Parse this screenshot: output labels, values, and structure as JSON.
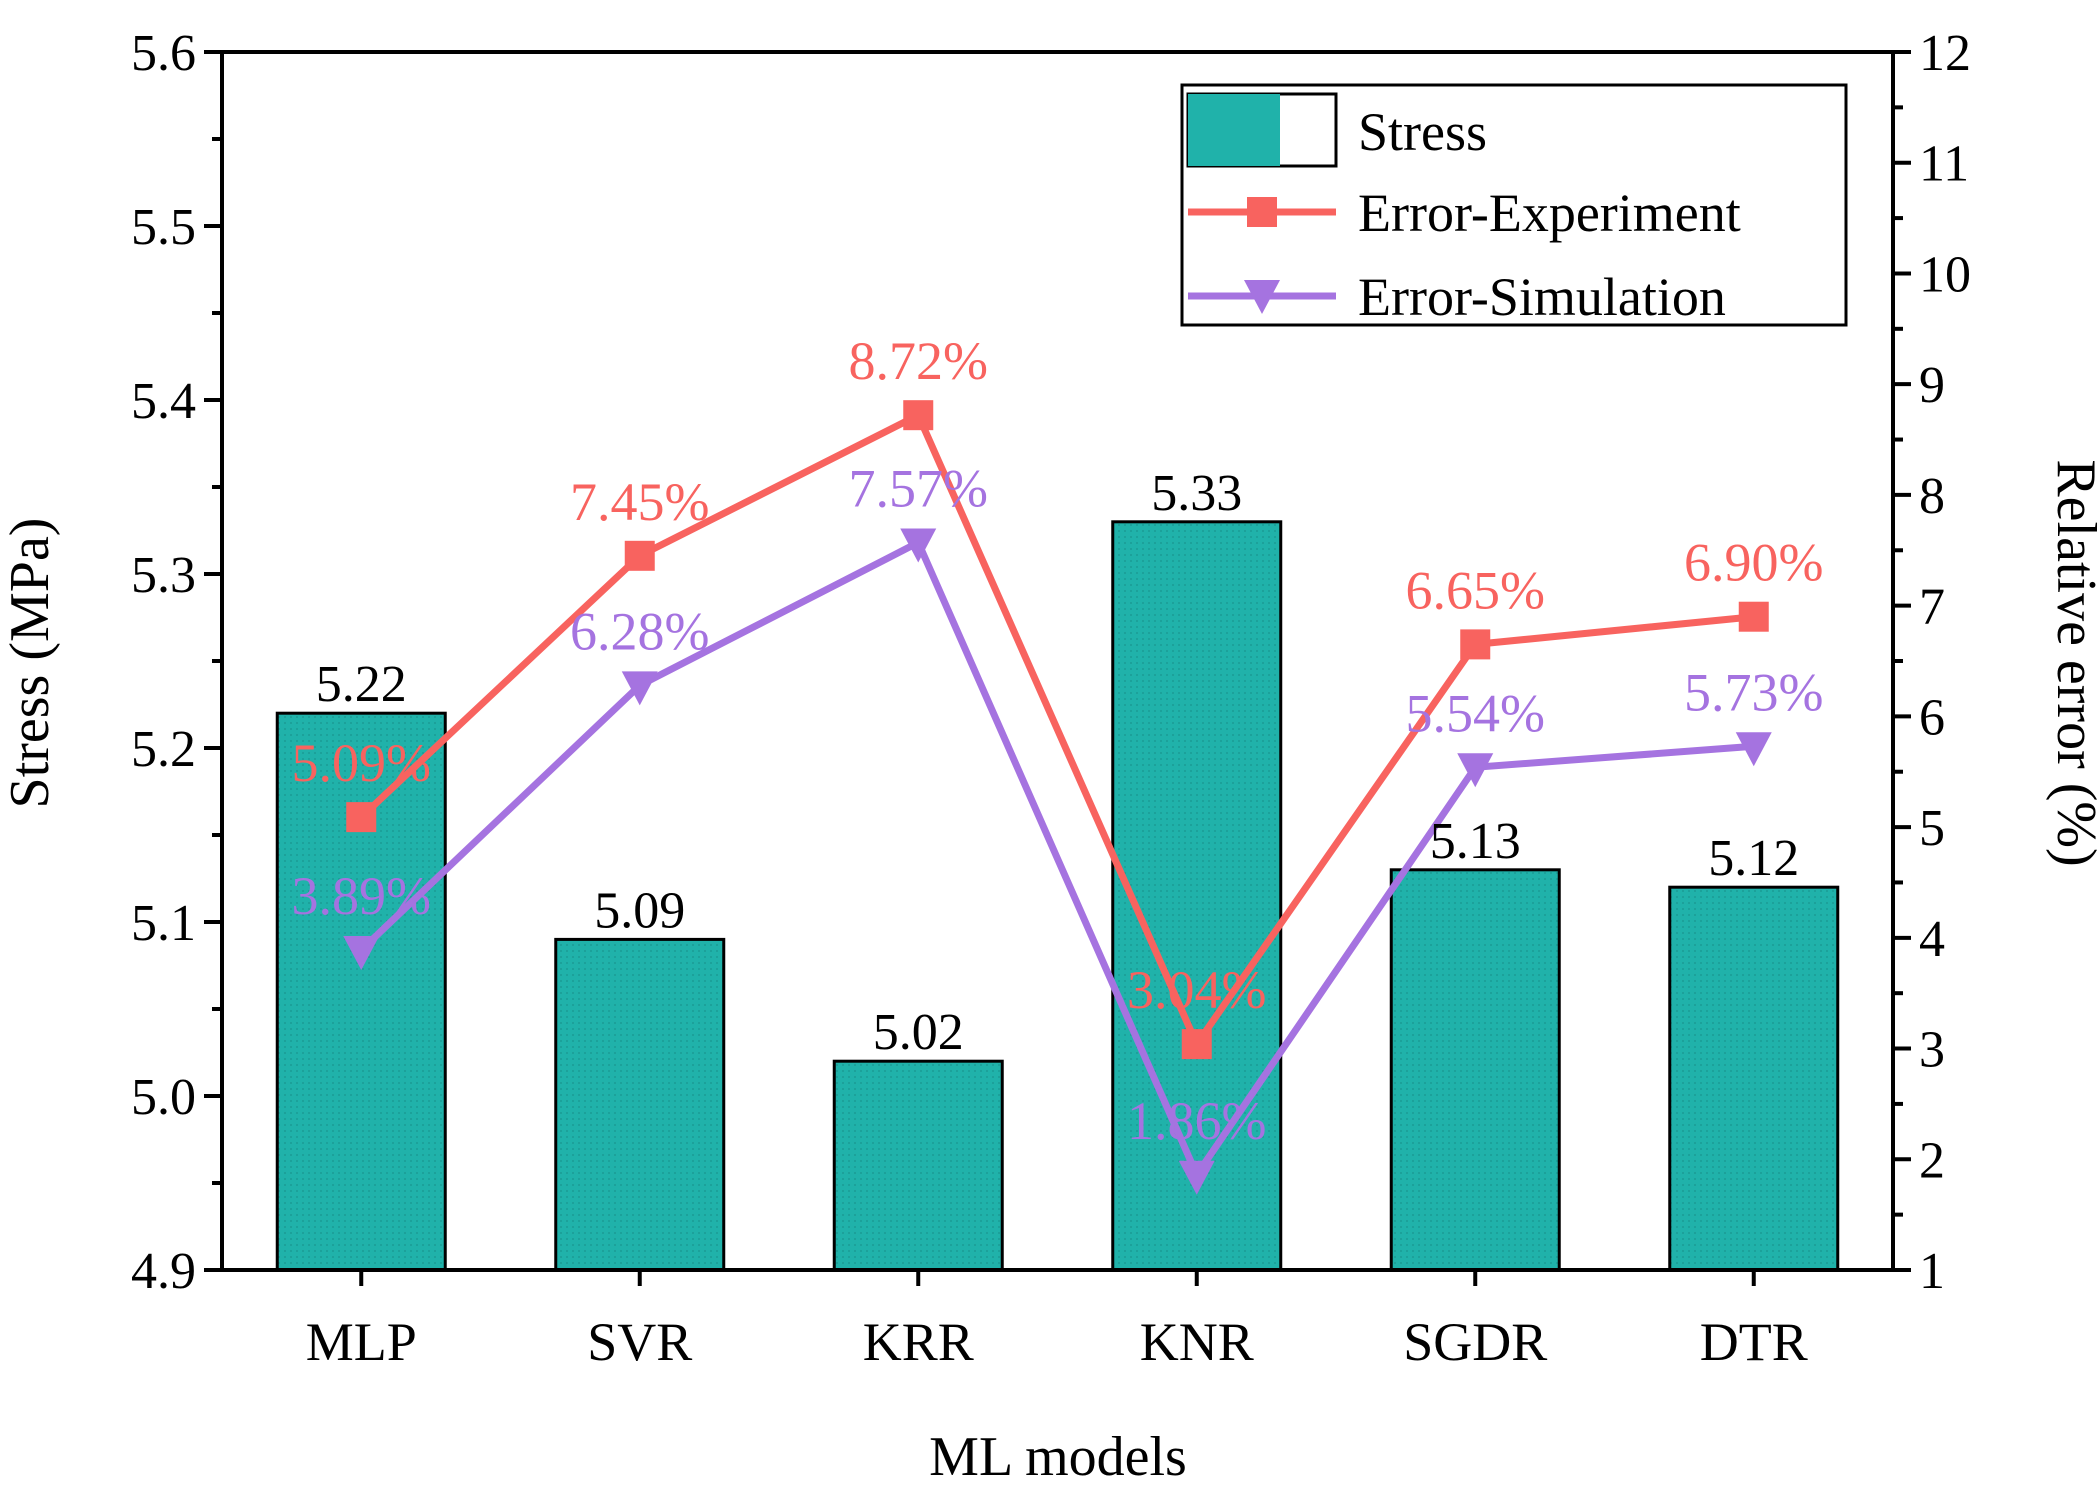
{
  "chart_data": {
    "type": "bar",
    "xlabel": "ML models",
    "ylabel_left": "Stress (MPa)",
    "ylabel_right": "Relative error (%)",
    "categories": [
      "MLP",
      "SVR",
      "KRR",
      "KNR",
      "SGDR",
      "DTR"
    ],
    "ylim_left": [
      4.9,
      5.6
    ],
    "yticks_left": [
      "4.9",
      "5.0",
      "5.1",
      "5.2",
      "5.3",
      "5.4",
      "5.5",
      "5.6"
    ],
    "ylim_right": [
      1,
      12
    ],
    "yticks_right": [
      "1",
      "2",
      "3",
      "4",
      "5",
      "6",
      "7",
      "8",
      "9",
      "10",
      "11",
      "12"
    ],
    "series": [
      {
        "name": "Stress",
        "kind": "bar",
        "axis": "left",
        "values": [
          5.22,
          5.09,
          5.02,
          5.33,
          5.13,
          5.12
        ],
        "labels": [
          "5.22",
          "5.09",
          "5.02",
          "5.33",
          "5.13",
          "5.12"
        ],
        "color": "#20b2aa"
      },
      {
        "name": "Error-Experiment",
        "kind": "line",
        "axis": "right",
        "marker": "square",
        "values": [
          5.09,
          7.45,
          8.72,
          3.04,
          6.65,
          6.9
        ],
        "labels": [
          "5.09%",
          "7.45%",
          "8.72%",
          "3.04%",
          "6.65%",
          "6.90%"
        ],
        "color": "#f8635f"
      },
      {
        "name": "Error-Simulation",
        "kind": "line",
        "axis": "right",
        "marker": "triangle-down",
        "values": [
          3.89,
          6.28,
          7.57,
          1.86,
          5.54,
          5.73
        ],
        "labels": [
          "3.89%",
          "6.28%",
          "7.57%",
          "1.86%",
          "5.54%",
          "5.73%"
        ],
        "color": "#a573e0"
      }
    ],
    "legend": {
      "position": "top-right",
      "entries": [
        "Stress",
        "Error-Experiment",
        "Error-Simulation"
      ]
    }
  }
}
